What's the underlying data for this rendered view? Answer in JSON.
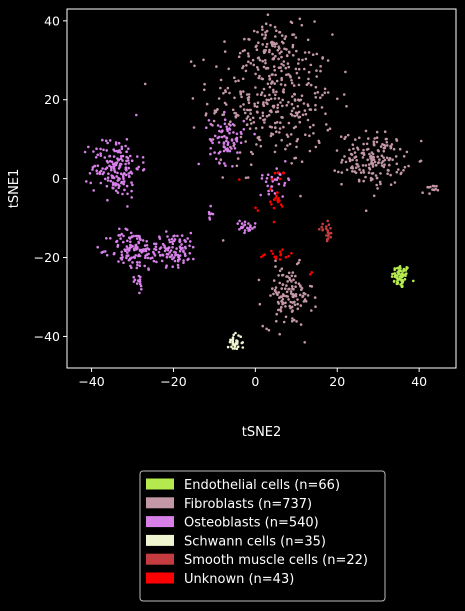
{
  "chart_data": {
    "type": "scatter",
    "title": "",
    "xlabel": "tSNE2",
    "ylabel": "tSNE1",
    "xlim": [
      -46,
      49
    ],
    "ylim": [
      -48,
      43
    ],
    "xticks": [
      -40,
      -20,
      0,
      20,
      40
    ],
    "yticks": [
      -40,
      -20,
      0,
      20,
      40
    ],
    "xtick_labels": [
      "−40",
      "−20",
      "0",
      "20",
      "40"
    ],
    "ytick_labels": [
      "−40",
      "−20",
      "0",
      "20",
      "40"
    ],
    "grid": false,
    "legend_position": "bottom-center-outside",
    "background": "#000000",
    "series": [
      {
        "name": "Endothelial cells (n=66)",
        "color": "#b5ea4f",
        "clusters": [
          {
            "cx": 35.5,
            "cy": -24.8,
            "sx": 1.3,
            "sy": 1.8,
            "n": 66
          }
        ]
      },
      {
        "name": "Fibroblasts (n=737)",
        "color": "#c397a6",
        "clusters": [
          {
            "cx": 4,
            "cy": 20,
            "sx": 9,
            "sy": 10,
            "n": 360
          },
          {
            "cx": 4,
            "cy": 33,
            "sx": 4,
            "sy": 3.5,
            "n": 70
          },
          {
            "cx": 29,
            "cy": 5,
            "sx": 4.5,
            "sy": 4,
            "n": 170
          },
          {
            "cx": 42.5,
            "cy": -3,
            "sx": 1,
            "sy": 0.8,
            "n": 12
          },
          {
            "cx": 8,
            "cy": -30,
            "sx": 3.5,
            "sy": 4.5,
            "n": 125
          }
        ]
      },
      {
        "name": "Osteoblasts (n=540)",
        "color": "#d680e8",
        "clusters": [
          {
            "cx": -34,
            "cy": 3,
            "sx": 3.5,
            "sy": 4.5,
            "n": 170
          },
          {
            "cx": -30,
            "cy": -18,
            "sx": 3.2,
            "sy": 3,
            "n": 110
          },
          {
            "cx": -20,
            "cy": -18,
            "sx": 3.5,
            "sy": 2.5,
            "n": 110
          },
          {
            "cx": -28.5,
            "cy": -26,
            "sx": 0.8,
            "sy": 1.5,
            "n": 15
          },
          {
            "cx": -7,
            "cy": 10,
            "sx": 2.5,
            "sy": 3.5,
            "n": 75
          },
          {
            "cx": 5,
            "cy": 0,
            "sx": 2.5,
            "sy": 2,
            "n": 30
          },
          {
            "cx": -2.5,
            "cy": -12.5,
            "sx": 1.5,
            "sy": 1,
            "n": 22
          },
          {
            "cx": -11,
            "cy": -9,
            "sx": 0.5,
            "sy": 1,
            "n": 8
          }
        ]
      },
      {
        "name": "Schwann cells (n=35)",
        "color": "#eef5cf",
        "clusters": [
          {
            "cx": -5,
            "cy": -41.5,
            "sx": 1,
            "sy": 1.2,
            "n": 35
          }
        ]
      },
      {
        "name": "Smooth muscle cells (n=22)",
        "color": "#c53c40",
        "clusters": [
          {
            "cx": 17.5,
            "cy": -13.5,
            "sx": 1,
            "sy": 1.3,
            "n": 22
          }
        ]
      },
      {
        "name": "Unknown (n=43)",
        "color": "#ff0000",
        "clusters": [
          {
            "cx": 5,
            "cy": -6,
            "sx": 1.2,
            "sy": 2.5,
            "n": 16
          },
          {
            "cx": 5,
            "cy": -19.5,
            "sx": 2.5,
            "sy": 1,
            "n": 16
          },
          {
            "cx": 6,
            "cy": 1,
            "sx": 1.5,
            "sy": 1.5,
            "n": 6
          },
          {
            "cx": 14,
            "cy": -23.5,
            "sx": 0.5,
            "sy": 0.5,
            "n": 2
          },
          {
            "cx": -4,
            "cy": 0,
            "sx": 0.5,
            "sy": 0.5,
            "n": 1
          },
          {
            "cx": 0.5,
            "cy": -8,
            "sx": 0.5,
            "sy": 0.5,
            "n": 2
          }
        ]
      }
    ]
  }
}
